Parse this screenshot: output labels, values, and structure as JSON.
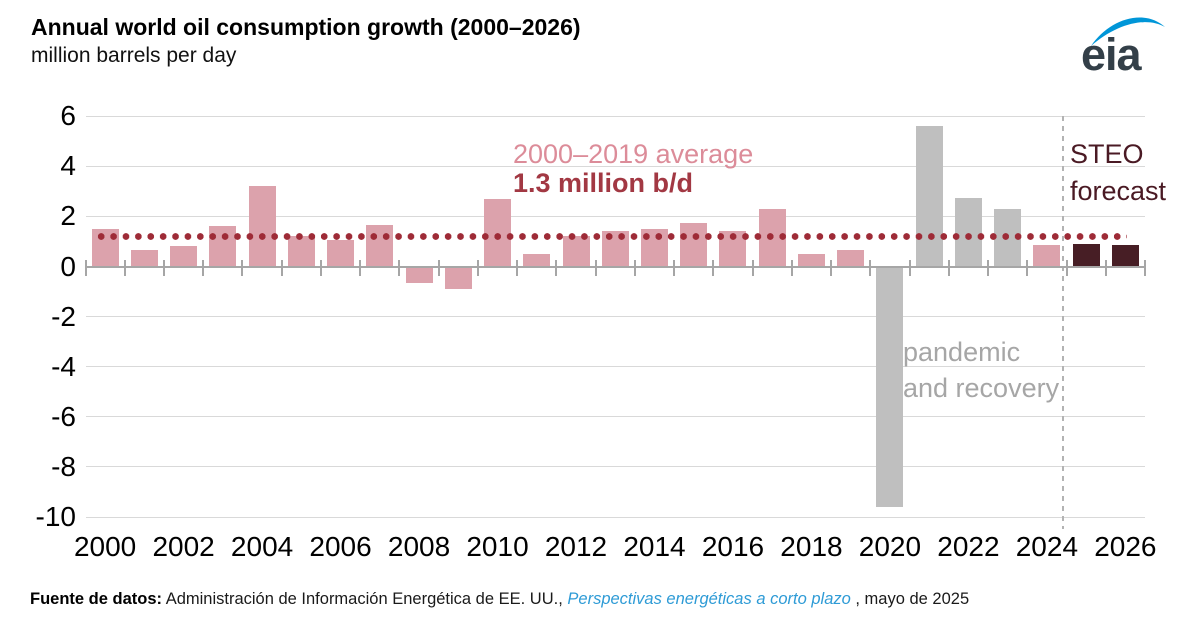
{
  "header": {
    "title": "Annual world oil consumption growth (2000–2026)",
    "subtitle": "million barrels per day"
  },
  "logo": {
    "text": "eia",
    "text_color": "#333f48",
    "swoosh_color": "#0096d8"
  },
  "annotations": {
    "average_label": "2000–2019 average",
    "average_value_label": "1.3 million b/d",
    "pandemic_line1": "pandemic",
    "pandemic_line2": "and recovery",
    "forecast_line1": "STEO",
    "forecast_line2": "forecast"
  },
  "footer": {
    "source_label": "Fuente de datos:",
    "source_text": " Administración de Información Energética de EE. UU., ",
    "link_text": "Perspectivas energéticas a corto plazo",
    "suffix_text": " , mayo de 2025"
  },
  "colors": {
    "history_bar": "#dca2ac",
    "pandemic_bar": "#bfbfbf",
    "forecast_bar": "#471e25",
    "average_dots": "#9e2b37",
    "average_label_text": "#dc8c99",
    "average_value_text": "#a23843",
    "pandemic_text": "#a6a6a6",
    "forecast_text": "#4a1a24",
    "gridline": "#d9d9d9",
    "axis": "#a6a6a6",
    "divider": "#b3b3b3",
    "link_blue": "#2e9bd6"
  },
  "chart_data": {
    "type": "bar",
    "title": "Annual world oil consumption growth (2000–2026)",
    "ylabel": "million barrels per day",
    "ylim": [
      -10,
      6
    ],
    "yticks": [
      6,
      4,
      2,
      0,
      -2,
      -4,
      -6,
      -8,
      -10
    ],
    "xtick_labels": [
      "2000",
      "2002",
      "2004",
      "2006",
      "2008",
      "2010",
      "2012",
      "2014",
      "2016",
      "2018",
      "2020",
      "2022",
      "2024",
      "2026"
    ],
    "grid": true,
    "legend": "none",
    "categories": [
      2000,
      2001,
      2002,
      2003,
      2004,
      2005,
      2006,
      2007,
      2008,
      2009,
      2010,
      2011,
      2012,
      2013,
      2014,
      2015,
      2016,
      2017,
      2018,
      2019,
      2020,
      2021,
      2022,
      2023,
      2024,
      2025,
      2026
    ],
    "values": [
      1.5,
      0.65,
      0.8,
      1.6,
      3.2,
      1.2,
      1.05,
      1.65,
      -0.65,
      -0.9,
      2.7,
      0.5,
      1.2,
      1.4,
      1.5,
      1.75,
      1.4,
      2.3,
      0.5,
      0.65,
      -9.6,
      5.6,
      2.75,
      2.3,
      0.85,
      0.9,
      0.85
    ],
    "groups": [
      "history",
      "history",
      "history",
      "history",
      "history",
      "history",
      "history",
      "history",
      "history",
      "history",
      "history",
      "history",
      "history",
      "history",
      "history",
      "history",
      "history",
      "history",
      "history",
      "history",
      "pandemic_recovery",
      "pandemic_recovery",
      "pandemic_recovery",
      "pandemic_recovery",
      "history",
      "forecast",
      "forecast"
    ],
    "group_colors": {
      "history": "#dca2ac",
      "pandemic_recovery": "#bfbfbf",
      "forecast": "#471e25"
    },
    "average_line": {
      "value": 1.3,
      "style": "dotted",
      "color": "#9e2b37",
      "label": "2000–2019 average",
      "value_label": "1.3 million b/d",
      "span_years": [
        2000,
        2026
      ]
    },
    "forecast_start_year": 2025,
    "annotations": [
      "pandemic and recovery",
      "STEO forecast"
    ]
  }
}
